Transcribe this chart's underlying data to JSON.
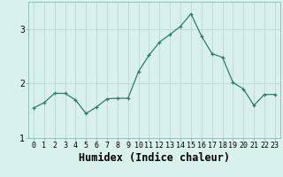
{
  "x": [
    0,
    1,
    2,
    3,
    4,
    5,
    6,
    7,
    8,
    9,
    10,
    11,
    12,
    13,
    14,
    15,
    16,
    17,
    18,
    19,
    20,
    21,
    22,
    23
  ],
  "y": [
    1.55,
    1.65,
    1.82,
    1.82,
    1.7,
    1.45,
    1.57,
    1.72,
    1.73,
    1.73,
    2.22,
    2.52,
    2.76,
    2.9,
    3.05,
    3.28,
    2.87,
    2.55,
    2.48,
    2.02,
    1.9,
    1.6,
    1.8,
    1.8
  ],
  "xlabel": "Humidex (Indice chaleur)",
  "line_color": "#2d7d6e",
  "marker": "+",
  "bg_color": "#d8f0ee",
  "grid_color": "#b8d8d4",
  "ylim": [
    1.0,
    3.5
  ],
  "xlim": [
    -0.5,
    23.5
  ],
  "yticks": [
    1,
    2,
    3
  ],
  "xticks": [
    0,
    1,
    2,
    3,
    4,
    5,
    6,
    7,
    8,
    9,
    10,
    11,
    12,
    13,
    14,
    15,
    16,
    17,
    18,
    19,
    20,
    21,
    22,
    23
  ],
  "tick_label_size": 6.0,
  "xlabel_size": 8.5,
  "ylabel_size": 7.0
}
